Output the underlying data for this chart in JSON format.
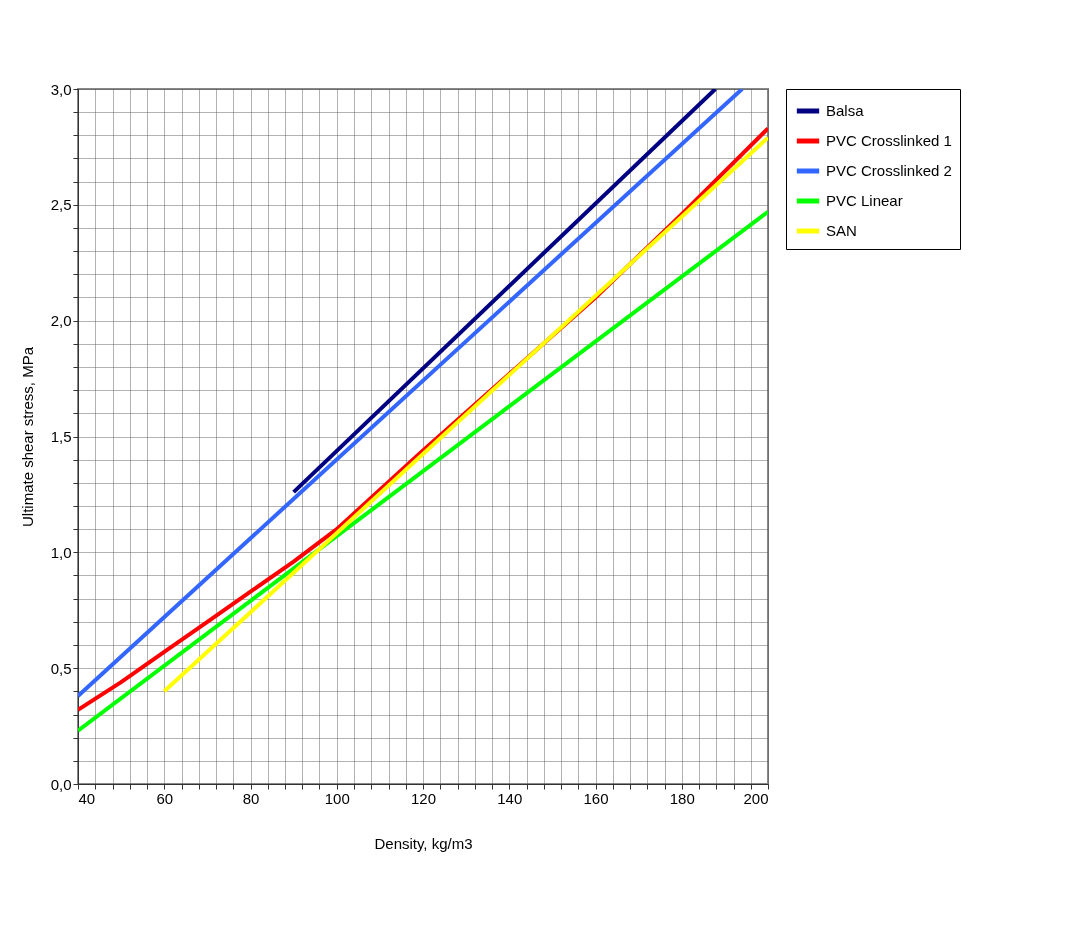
{
  "chart_data": {
    "type": "line",
    "xlabel": "Density, kg/m3",
    "ylabel": "Ultimate shear stress, MPa",
    "xlim": [
      40,
      200
    ],
    "ylim": [
      0,
      3
    ],
    "xticks": [
      40,
      {
        "value": 44,
        "label": null
      },
      {
        "value": 48,
        "label": null
      },
      {
        "value": 52,
        "label": null
      },
      {
        "value": 56,
        "label": null
      },
      60,
      {
        "value": 64,
        "label": null
      },
      {
        "value": 68,
        "label": null
      },
      {
        "value": 72,
        "label": null
      },
      {
        "value": 76,
        "label": null
      },
      80,
      {
        "value": 84,
        "label": null
      },
      {
        "value": 88,
        "label": null
      },
      {
        "value": 92,
        "label": null
      },
      {
        "value": 96,
        "label": null
      },
      100,
      {
        "value": 104,
        "label": null
      },
      {
        "value": 108,
        "label": null
      },
      {
        "value": 112,
        "label": null
      },
      {
        "value": 116,
        "label": null
      },
      120,
      {
        "value": 124,
        "label": null
      },
      {
        "value": 128,
        "label": null
      },
      {
        "value": 132,
        "label": null
      },
      {
        "value": 136,
        "label": null
      },
      140,
      {
        "value": 144,
        "label": null
      },
      {
        "value": 148,
        "label": null
      },
      {
        "value": 152,
        "label": null
      },
      {
        "value": 156,
        "label": null
      },
      160,
      {
        "value": 164,
        "label": null
      },
      {
        "value": 168,
        "label": null
      },
      {
        "value": 172,
        "label": null
      },
      {
        "value": 176,
        "label": null
      },
      180,
      {
        "value": 184,
        "label": null
      },
      {
        "value": 188,
        "label": null
      },
      {
        "value": 192,
        "label": null
      },
      {
        "value": 196,
        "label": null
      },
      200
    ],
    "yticks": [
      {
        "value": 0,
        "label": "0,0"
      },
      {
        "value": 0.1,
        "label": null
      },
      {
        "value": 0.2,
        "label": null
      },
      {
        "value": 0.3,
        "label": null
      },
      {
        "value": 0.4,
        "label": null
      },
      {
        "value": 0.5,
        "label": "0,5"
      },
      {
        "value": 0.6,
        "label": null
      },
      {
        "value": 0.7,
        "label": null
      },
      {
        "value": 0.8,
        "label": null
      },
      {
        "value": 0.9,
        "label": null
      },
      {
        "value": 1,
        "label": "1,0"
      },
      {
        "value": 1.1,
        "label": null
      },
      {
        "value": 1.2,
        "label": null
      },
      {
        "value": 1.3,
        "label": null
      },
      {
        "value": 1.4,
        "label": null
      },
      {
        "value": 1.5,
        "label": "1,5"
      },
      {
        "value": 1.6,
        "label": null
      },
      {
        "value": 1.7,
        "label": null
      },
      {
        "value": 1.8,
        "label": null
      },
      {
        "value": 1.9,
        "label": null
      },
      {
        "value": 2,
        "label": "2,0"
      },
      {
        "value": 2.1,
        "label": null
      },
      {
        "value": 2.2,
        "label": null
      },
      {
        "value": 2.3,
        "label": null
      },
      {
        "value": 2.4,
        "label": null
      },
      {
        "value": 2.5,
        "label": "2,5"
      },
      {
        "value": 2.6,
        "label": null
      },
      {
        "value": 2.7,
        "label": null
      },
      {
        "value": 2.8,
        "label": null
      },
      {
        "value": 2.9,
        "label": null
      },
      {
        "value": 3,
        "label": "3,0"
      }
    ],
    "grid": true,
    "legend": "right",
    "series": [
      {
        "name": "Balsa",
        "color": "#000080",
        "x": [
          90,
          187.8
        ],
        "values": [
          1.26,
          3.0
        ]
      },
      {
        "name": "PVC Crosslinked 1",
        "color": "#ff0000",
        "x": [
          40,
          50,
          60,
          70,
          80,
          90,
          100,
          120,
          140,
          160,
          180,
          200
        ],
        "values": [
          0.32,
          0.44,
          0.57,
          0.7,
          0.83,
          0.96,
          1.1,
          1.44,
          1.77,
          2.1,
          2.46,
          2.83
        ]
      },
      {
        "name": "PVC Crosslinked 2",
        "color": "#3366ff",
        "x": [
          40,
          194
        ],
        "values": [
          0.38,
          3.0
        ]
      },
      {
        "name": "PVC Linear",
        "color": "#00ff00",
        "x": [
          40,
          200
        ],
        "values": [
          0.23,
          2.47
        ]
      },
      {
        "name": "SAN",
        "color": "#ffff00",
        "x": [
          60,
          200
        ],
        "values": [
          0.4,
          2.79
        ]
      }
    ]
  }
}
